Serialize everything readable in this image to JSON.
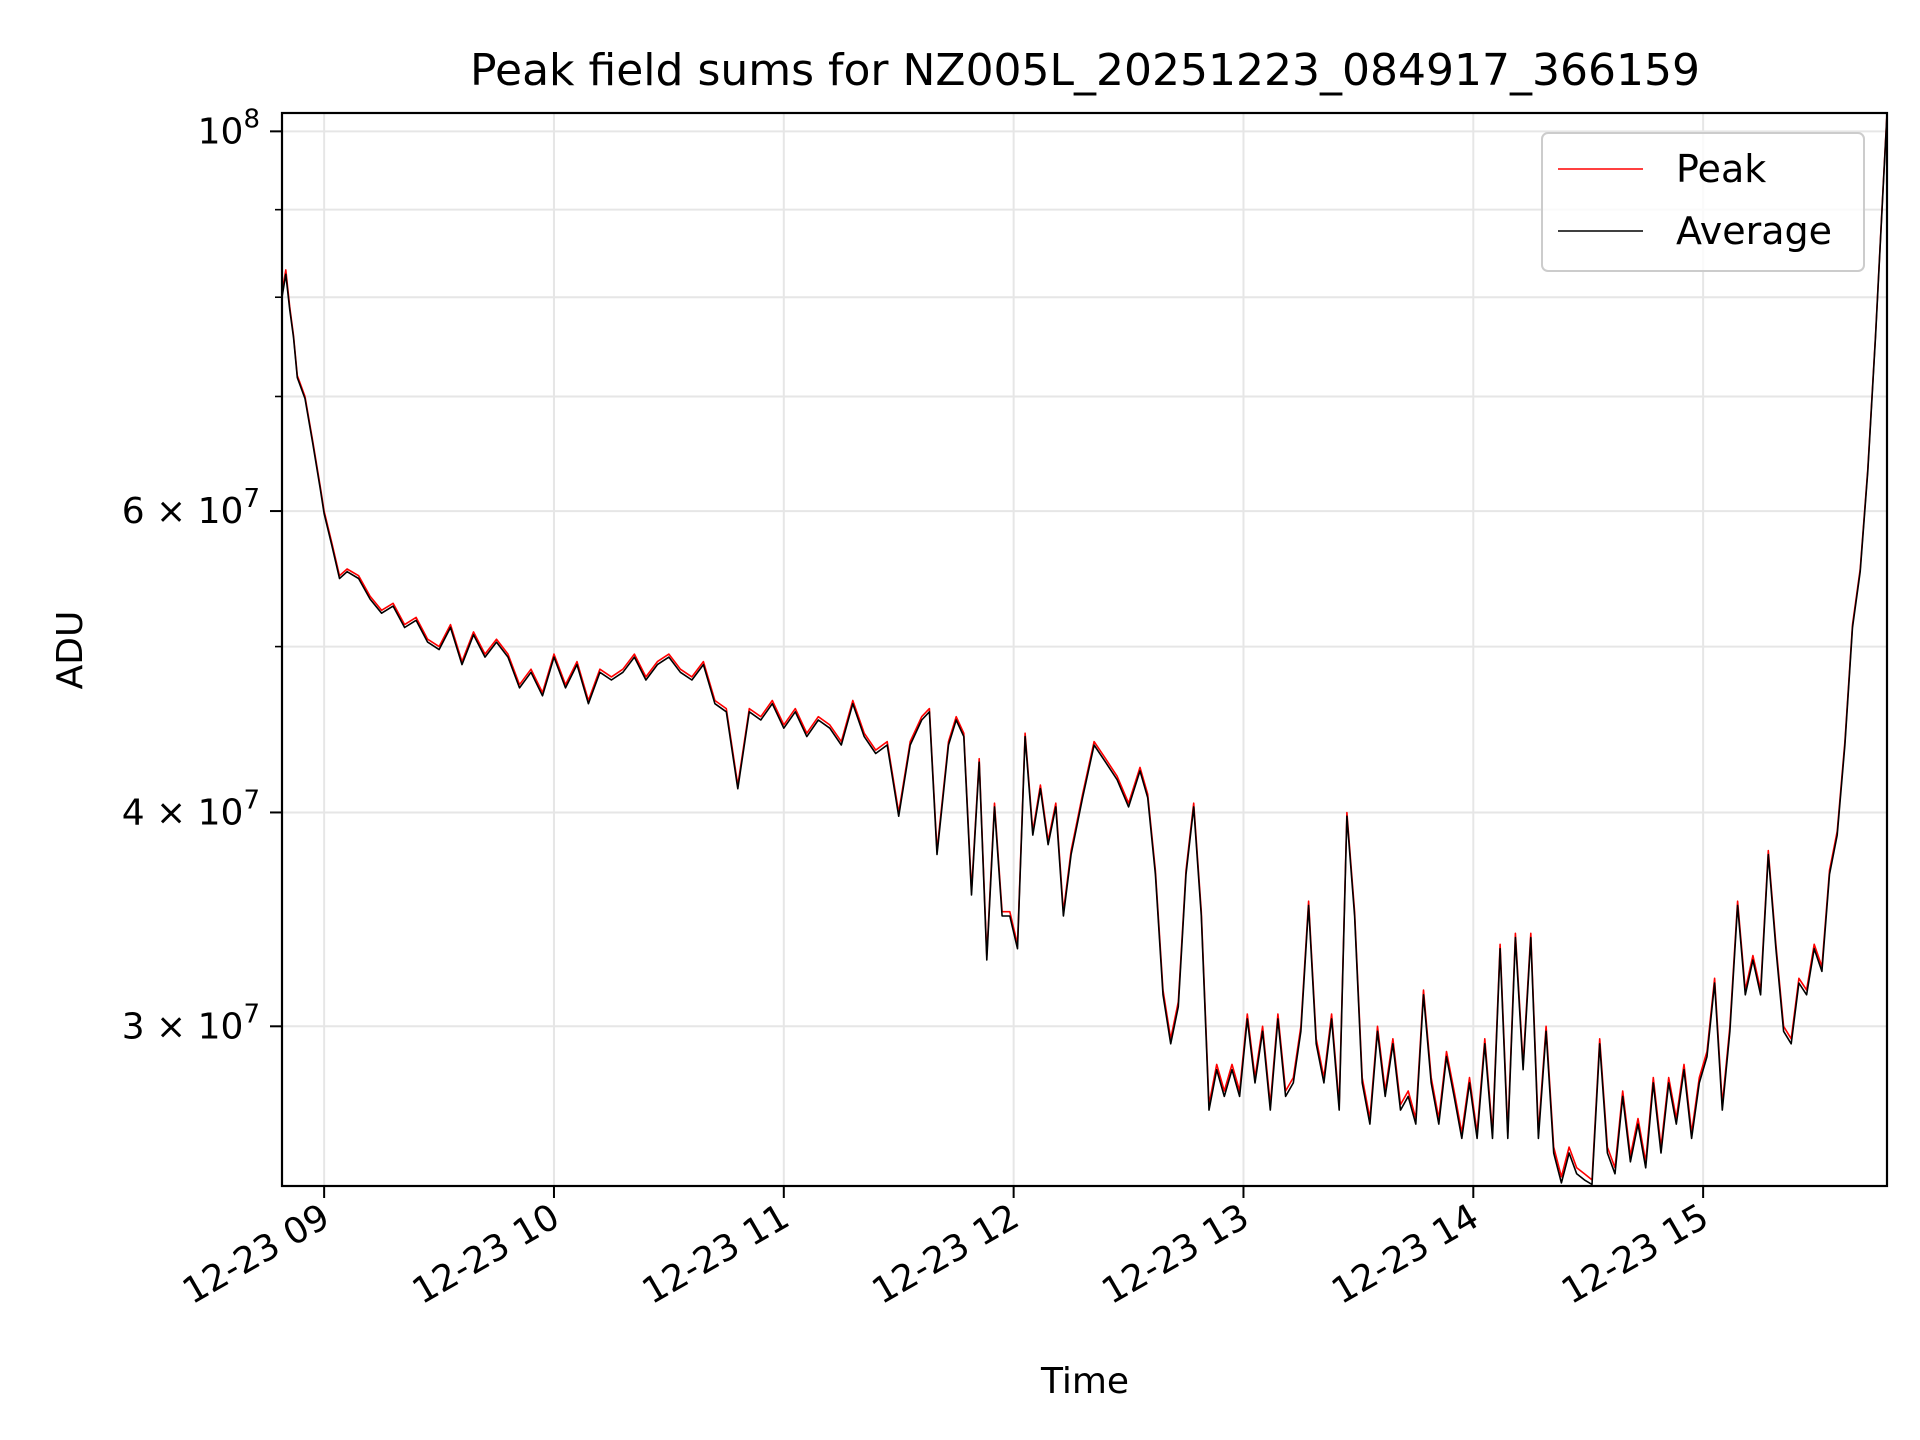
{
  "chart_data": {
    "type": "line",
    "title": "Peak field sums for NZ005L_20251223_084917_366159",
    "xlabel": "Time",
    "ylabel": "ADU",
    "yscale": "log",
    "grid": true,
    "legend_position": "top-right",
    "xlim": [
      "2025-12-23 08:49",
      "2025-12-23 15:48"
    ],
    "ylim": [
      24200000,
      102500000
    ],
    "x_ticks": [
      "12-23 09",
      "12-23 10",
      "12-23 11",
      "12-23 12",
      "12-23 13",
      "12-23 14",
      "12-23 15"
    ],
    "y_ticks": [
      {
        "value": 100000000,
        "base": "10",
        "exp": "8"
      },
      {
        "value": 60000000,
        "base": "6 × 10",
        "exp": "7"
      },
      {
        "value": 40000000,
        "base": "4 × 10",
        "exp": "7"
      },
      {
        "value": 30000000,
        "base": "3 × 10",
        "exp": "7"
      }
    ],
    "y_minor_ticks": [
      50000000,
      70000000,
      80000000,
      90000000
    ],
    "colors": {
      "Peak": "#ff0000",
      "Average": "#000000"
    },
    "series": [
      {
        "name": "Peak",
        "x": [
          "08:49",
          "08:50",
          "08:51",
          "08:52",
          "08:53",
          "08:55",
          "08:57",
          "08:59",
          "09:00",
          "09:02",
          "09:04",
          "09:06",
          "09:09",
          "09:12",
          "09:15",
          "09:18",
          "09:21",
          "09:24",
          "09:27",
          "09:30",
          "09:33",
          "09:36",
          "09:39",
          "09:42",
          "09:45",
          "09:48",
          "09:51",
          "09:54",
          "09:57",
          "10:00",
          "10:03",
          "10:06",
          "10:09",
          "10:12",
          "10:15",
          "10:18",
          "10:21",
          "10:24",
          "10:27",
          "10:30",
          "10:33",
          "10:36",
          "10:39",
          "10:42",
          "10:45",
          "10:48",
          "10:51",
          "10:54",
          "10:57",
          "11:00",
          "11:03",
          "11:06",
          "11:09",
          "11:12",
          "11:15",
          "11:18",
          "11:21",
          "11:24",
          "11:27",
          "11:30",
          "11:33",
          "11:36",
          "11:38",
          "11:40",
          "11:43",
          "11:45",
          "11:47",
          "11:49",
          "11:51",
          "11:53",
          "11:55",
          "11:57",
          "11:59",
          "12:01",
          "12:03",
          "12:05",
          "12:07",
          "12:09",
          "12:11",
          "12:13",
          "12:15",
          "12:18",
          "12:21",
          "12:24",
          "12:27",
          "12:30",
          "12:33",
          "12:35",
          "12:37",
          "12:39",
          "12:41",
          "12:43",
          "12:45",
          "12:47",
          "12:49",
          "12:51",
          "12:53",
          "12:55",
          "12:57",
          "12:59",
          "13:01",
          "13:03",
          "13:05",
          "13:07",
          "13:09",
          "13:11",
          "13:13",
          "13:15",
          "13:17",
          "13:19",
          "13:21",
          "13:23",
          "13:25",
          "13:27",
          "13:29",
          "13:31",
          "13:33",
          "13:35",
          "13:37",
          "13:39",
          "13:41",
          "13:43",
          "13:45",
          "13:47",
          "13:49",
          "13:51",
          "13:53",
          "13:55",
          "13:57",
          "13:59",
          "14:01",
          "14:03",
          "14:05",
          "14:07",
          "14:09",
          "14:11",
          "14:13",
          "14:15",
          "14:17",
          "14:19",
          "14:21",
          "14:23",
          "14:25",
          "14:27",
          "14:29",
          "14:31",
          "14:33",
          "14:35",
          "14:37",
          "14:39",
          "14:41",
          "14:43",
          "14:45",
          "14:47",
          "14:49",
          "14:51",
          "14:53",
          "14:55",
          "14:57",
          "14:59",
          "15:01",
          "15:03",
          "15:05",
          "15:07",
          "15:09",
          "15:11",
          "15:13",
          "15:15",
          "15:17",
          "15:19",
          "15:21",
          "15:23",
          "15:25",
          "15:27",
          "15:29",
          "15:31",
          "15:33",
          "15:35",
          "15:37",
          "15:39",
          "15:41",
          "15:43",
          "15:45",
          "15:47",
          "15:48"
        ],
        "y": [
          80500000,
          83000000,
          79000000,
          76000000,
          72000000,
          70000000,
          66000000,
          62000000,
          60000000,
          57500000,
          55000000,
          55500000,
          55000000,
          53500000,
          52500000,
          53000000,
          51500000,
          52000000,
          50500000,
          50000000,
          51500000,
          49000000,
          51000000,
          49500000,
          50500000,
          49500000,
          47500000,
          48500000,
          47000000,
          49500000,
          47500000,
          49000000,
          46500000,
          48500000,
          48000000,
          48500000,
          49500000,
          48000000,
          49000000,
          49500000,
          48500000,
          48000000,
          49000000,
          46500000,
          46000000,
          41500000,
          46000000,
          45500000,
          46500000,
          45000000,
          46000000,
          44500000,
          45500000,
          45000000,
          44000000,
          46500000,
          44500000,
          43500000,
          44000000,
          40000000,
          44000000,
          45500000,
          46000000,
          38000000,
          44000000,
          45500000,
          44500000,
          36000000,
          43000000,
          33000000,
          40500000,
          35000000,
          35000000,
          33500000,
          44500000,
          39000000,
          41500000,
          38500000,
          40500000,
          35000000,
          38000000,
          41000000,
          44000000,
          43000000,
          42000000,
          40500000,
          42500000,
          41000000,
          37000000,
          31500000,
          29500000,
          31000000,
          37000000,
          40500000,
          35000000,
          27000000,
          28500000,
          27500000,
          28500000,
          27500000,
          30500000,
          28000000,
          30000000,
          27000000,
          30500000,
          27500000,
          28000000,
          30000000,
          35500000,
          29500000,
          28000000,
          30500000,
          27000000,
          40000000,
          35000000,
          28000000,
          26500000,
          30000000,
          27500000,
          29500000,
          27000000,
          27500000,
          26500000,
          31500000,
          28000000,
          26500000,
          29000000,
          27500000,
          26000000,
          28000000,
          26000000,
          29500000,
          26000000,
          33500000,
          26000000,
          34000000,
          28500000,
          34000000,
          26000000,
          30000000,
          25500000,
          24500000,
          25500000,
          24800000,
          24600000,
          24400000,
          29500000,
          25500000,
          24800000,
          27500000,
          25200000,
          26500000,
          25000000,
          28000000,
          25500000,
          28000000,
          26500000,
          28500000,
          26000000,
          28000000,
          29000000,
          32000000,
          27000000,
          30000000,
          35500000,
          31500000,
          33000000,
          31500000,
          38000000,
          33500000,
          30000000,
          29500000,
          32000000,
          31500000,
          33500000,
          32500000,
          37000000,
          39000000,
          44000000,
          51500000,
          55500000,
          63500000,
          76000000,
          93000000,
          102500000
        ]
      },
      {
        "name": "Average",
        "x": [
          "08:49",
          "08:50",
          "08:51",
          "08:52",
          "08:53",
          "08:55",
          "08:57",
          "08:59",
          "09:00",
          "09:02",
          "09:04",
          "09:06",
          "09:09",
          "09:12",
          "09:15",
          "09:18",
          "09:21",
          "09:24",
          "09:27",
          "09:30",
          "09:33",
          "09:36",
          "09:39",
          "09:42",
          "09:45",
          "09:48",
          "09:51",
          "09:54",
          "09:57",
          "10:00",
          "10:03",
          "10:06",
          "10:09",
          "10:12",
          "10:15",
          "10:18",
          "10:21",
          "10:24",
          "10:27",
          "10:30",
          "10:33",
          "10:36",
          "10:39",
          "10:42",
          "10:45",
          "10:48",
          "10:51",
          "10:54",
          "10:57",
          "11:00",
          "11:03",
          "11:06",
          "11:09",
          "11:12",
          "11:15",
          "11:18",
          "11:21",
          "11:24",
          "11:27",
          "11:30",
          "11:33",
          "11:36",
          "11:38",
          "11:40",
          "11:43",
          "11:45",
          "11:47",
          "11:49",
          "11:51",
          "11:53",
          "11:55",
          "11:57",
          "11:59",
          "12:01",
          "12:03",
          "12:05",
          "12:07",
          "12:09",
          "12:11",
          "12:13",
          "12:15",
          "12:18",
          "12:21",
          "12:24",
          "12:27",
          "12:30",
          "12:33",
          "12:35",
          "12:37",
          "12:39",
          "12:41",
          "12:43",
          "12:45",
          "12:47",
          "12:49",
          "12:51",
          "12:53",
          "12:55",
          "12:57",
          "12:59",
          "13:01",
          "13:03",
          "13:05",
          "13:07",
          "13:09",
          "13:11",
          "13:13",
          "13:15",
          "13:17",
          "13:19",
          "13:21",
          "13:23",
          "13:25",
          "13:27",
          "13:29",
          "13:31",
          "13:33",
          "13:35",
          "13:37",
          "13:39",
          "13:41",
          "13:43",
          "13:45",
          "13:47",
          "13:49",
          "13:51",
          "13:53",
          "13:55",
          "13:57",
          "13:59",
          "14:01",
          "14:03",
          "14:05",
          "14:07",
          "14:09",
          "14:11",
          "14:13",
          "14:15",
          "14:17",
          "14:19",
          "14:21",
          "14:23",
          "14:25",
          "14:27",
          "14:29",
          "14:31",
          "14:33",
          "14:35",
          "14:37",
          "14:39",
          "14:41",
          "14:43",
          "14:45",
          "14:47",
          "14:49",
          "14:51",
          "14:53",
          "14:55",
          "14:57",
          "14:59",
          "15:01",
          "15:03",
          "15:05",
          "15:07",
          "15:09",
          "15:11",
          "15:13",
          "15:15",
          "15:17",
          "15:19",
          "15:21",
          "15:23",
          "15:25",
          "15:27",
          "15:29",
          "15:31",
          "15:33",
          "15:35",
          "15:37",
          "15:39",
          "15:41",
          "15:43",
          "15:45",
          "15:47",
          "15:48"
        ],
        "y": [
          80000000,
          82500000,
          78700000,
          75800000,
          71800000,
          69800000,
          65800000,
          61800000,
          59800000,
          57300000,
          54800000,
          55300000,
          54800000,
          53300000,
          52300000,
          52800000,
          51300000,
          51800000,
          50300000,
          49800000,
          51300000,
          48800000,
          50800000,
          49300000,
          50300000,
          49300000,
          47300000,
          48300000,
          46800000,
          49300000,
          47300000,
          48800000,
          46300000,
          48300000,
          47800000,
          48300000,
          49300000,
          47800000,
          48800000,
          49300000,
          48300000,
          47800000,
          48800000,
          46300000,
          45800000,
          41300000,
          45800000,
          45300000,
          46300000,
          44800000,
          45800000,
          44300000,
          45300000,
          44800000,
          43800000,
          46300000,
          44300000,
          43300000,
          43800000,
          39800000,
          43800000,
          45300000,
          45800000,
          37800000,
          43800000,
          45300000,
          44300000,
          35800000,
          42800000,
          32800000,
          40300000,
          34800000,
          34800000,
          33300000,
          44300000,
          38800000,
          41300000,
          38300000,
          40300000,
          34800000,
          37800000,
          40800000,
          43800000,
          42800000,
          41800000,
          40300000,
          42300000,
          40800000,
          36800000,
          31300000,
          29300000,
          30800000,
          36800000,
          40300000,
          34800000,
          26800000,
          28300000,
          27300000,
          28300000,
          27300000,
          30300000,
          27800000,
          29800000,
          26800000,
          30300000,
          27300000,
          27800000,
          29800000,
          35300000,
          29300000,
          27800000,
          30300000,
          26800000,
          39800000,
          34800000,
          27800000,
          26300000,
          29800000,
          27300000,
          29300000,
          26800000,
          27300000,
          26300000,
          31300000,
          27800000,
          26300000,
          28800000,
          27300000,
          25800000,
          27800000,
          25800000,
          29300000,
          25800000,
          33300000,
          25800000,
          33800000,
          28300000,
          33800000,
          25800000,
          29800000,
          25300000,
          24300000,
          25300000,
          24600000,
          24400000,
          24250000,
          29300000,
          25300000,
          24600000,
          27300000,
          25000000,
          26300000,
          24800000,
          27800000,
          25300000,
          27800000,
          26300000,
          28300000,
          25800000,
          27800000,
          28800000,
          31800000,
          26800000,
          29800000,
          35300000,
          31300000,
          32800000,
          31300000,
          37800000,
          33300000,
          29800000,
          29300000,
          31800000,
          31300000,
          33300000,
          32300000,
          36800000,
          38800000,
          43800000,
          51300000,
          55300000,
          63300000,
          75800000,
          92800000,
          102300000
        ]
      }
    ]
  }
}
